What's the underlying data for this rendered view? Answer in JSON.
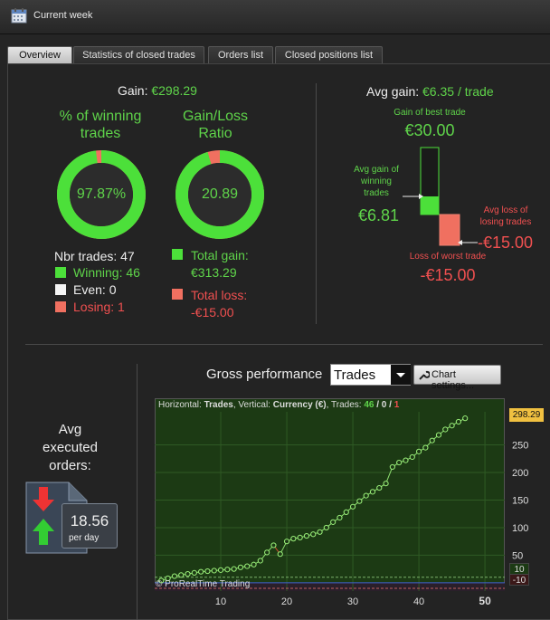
{
  "window": {
    "title": "Current week",
    "calendar_icon": "calendar-icon"
  },
  "tabs": [
    {
      "label": "Overview",
      "active": true
    },
    {
      "label": "Statistics of closed trades",
      "active": false
    },
    {
      "label": "Orders list",
      "active": false
    },
    {
      "label": "Closed positions list",
      "active": false
    }
  ],
  "overview": {
    "gain_label": "Gain:",
    "gain_value": "€298.29",
    "winning_title_1": "% of winning",
    "winning_title_2": "trades",
    "winning_pct": "97.87%",
    "winning_fraction": 0.9787,
    "ratio_title_1": "Gain/Loss",
    "ratio_title_2": "Ratio",
    "ratio_value": "20.89",
    "ratio_fraction": 0.954,
    "nbr_trades": "Nbr trades: 47",
    "winning": "Winning: 46",
    "even": "Even: 0",
    "losing": "Losing: 1",
    "total_gain_label": "Total gain:",
    "total_gain_value": "€313.29",
    "total_loss_label": "Total loss:",
    "total_loss_value": "-€15.00",
    "colors": {
      "win": "#5fd44a",
      "loss": "#f05050",
      "even": "#eeeeee"
    }
  },
  "avg_gain": {
    "label": "Avg gain:",
    "value": "€6.35 / trade",
    "best_label": "Gain of best trade",
    "best_value": "€30.00",
    "avg_win_label_1": "Avg gain of",
    "avg_win_label_2": "winning",
    "avg_win_label_3": "trades",
    "avg_win_value": "€6.81",
    "avg_loss_label_1": "Avg loss of",
    "avg_loss_label_2": "losing trades",
    "avg_loss_value": "-€15.00",
    "worst_label": "Loss of worst trade",
    "worst_value": "-€15.00"
  },
  "avg_orders": {
    "title_1": "Avg",
    "title_2": "executed",
    "title_3": "orders:",
    "value": "18.56",
    "unit": "per day"
  },
  "gross": {
    "title": "Gross performance",
    "select_value": "Trades",
    "chart_settings_label": "Chart settings...",
    "header_prefix": "Horizontal: ",
    "header_h": "Trades",
    "header_mid": ", Vertical: ",
    "header_v": "Currency (€)",
    "header_trades": ", Trades: ",
    "header_win": "46",
    "header_sep1": " / ",
    "header_even": "0",
    "header_sep2": " / ",
    "header_loss": "1",
    "copyright": "© ProRealTime Trading",
    "last_value": "298.29",
    "side_top": "10",
    "side_bottom": "-10"
  },
  "chart_data": {
    "type": "line",
    "title": "Gross performance",
    "xlabel": "Trades",
    "ylabel": "Currency (€)",
    "xlim": [
      0,
      53
    ],
    "ylim": [
      -15,
      310
    ],
    "x_ticks": [
      10,
      20,
      30,
      40,
      50
    ],
    "y_ticks": [
      50,
      100,
      150,
      200,
      250
    ],
    "grid": true,
    "x": [
      1,
      2,
      3,
      4,
      5,
      6,
      7,
      8,
      9,
      10,
      11,
      12,
      13,
      14,
      15,
      16,
      17,
      18,
      19,
      20,
      21,
      22,
      23,
      24,
      25,
      26,
      27,
      28,
      29,
      30,
      31,
      32,
      33,
      34,
      35,
      36,
      37,
      38,
      39,
      40,
      41,
      42,
      43,
      44,
      45,
      46,
      47
    ],
    "y": [
      4,
      8,
      12,
      14,
      16,
      18,
      20,
      21,
      22,
      23,
      24,
      25,
      28,
      30,
      33,
      40,
      55,
      68,
      52,
      75,
      80,
      82,
      85,
      88,
      92,
      100,
      110,
      118,
      128,
      138,
      148,
      158,
      165,
      172,
      180,
      210,
      218,
      222,
      228,
      238,
      245,
      258,
      268,
      278,
      285,
      292,
      298.29
    ]
  }
}
